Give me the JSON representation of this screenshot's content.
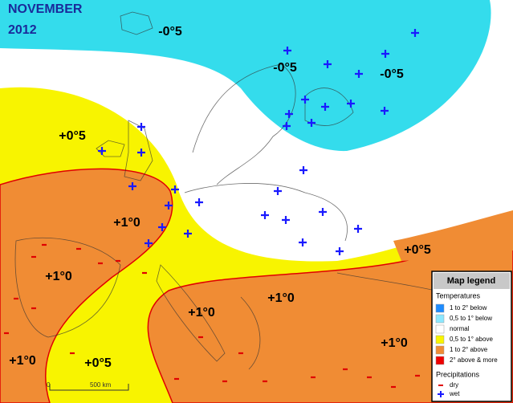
{
  "title": {
    "month": "NOVEMBER",
    "year": "2012"
  },
  "labels": [
    "-0°5",
    "-0°5",
    "-0°5",
    "+0°5",
    "+0°5",
    "+0°5",
    "+1°0",
    "+1°0",
    "+1°0",
    "+1°0",
    "+1°0",
    "+1°0"
  ],
  "legend": {
    "title": "Map legend",
    "temperatures_heading": "Temperatures",
    "temperatures": [
      "1 to 2° below",
      "0,5 to 1° below",
      "normal",
      "0,5 to 1° above",
      "1 to 2° above",
      "2° above & more"
    ],
    "precipitations_heading": "Precipitations",
    "precipitations": [
      "dry",
      "wet"
    ]
  },
  "scale": {
    "start": "0",
    "end": "500 km"
  }
}
